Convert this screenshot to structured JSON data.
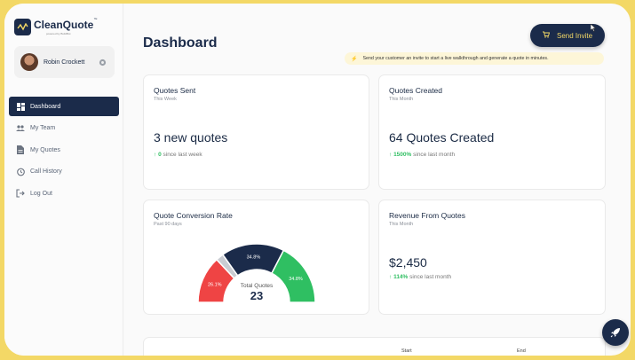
{
  "brand": {
    "name": "CleanQuote",
    "tagline": "powered by BuildBot",
    "tm": "™"
  },
  "user": {
    "name": "Robin Crockett"
  },
  "nav": [
    {
      "label": "Dashboard",
      "icon": "dashboard-icon",
      "active": true
    },
    {
      "label": "My Team",
      "icon": "team-icon"
    },
    {
      "label": "My Quotes",
      "icon": "document-icon"
    },
    {
      "label": "Call History",
      "icon": "history-icon"
    },
    {
      "label": "Log Out",
      "icon": "logout-icon"
    }
  ],
  "header": {
    "title": "Dashboard",
    "send_invite": "Send Invite",
    "hint": "Send your customer an invite to start a live walkthrough and generate a quote in minutes."
  },
  "cards": {
    "quotes_sent": {
      "title": "Quotes Sent",
      "period": "This Week",
      "value": "3 new quotes",
      "trend_value": "0",
      "trend_text": "since last week"
    },
    "quotes_created": {
      "title": "Quotes Created",
      "period": "This Month",
      "value": "64 Quotes Created",
      "trend_value": "1500%",
      "trend_text": "since last month"
    },
    "conversion": {
      "title": "Quote Conversion Rate",
      "period": "Past 90 days",
      "center_label": "Total Quotes",
      "center_value": "23"
    },
    "revenue": {
      "title": "Revenue From Quotes",
      "period": "This Month",
      "value": "$2,450",
      "trend_value": "114%",
      "trend_text": "since last month"
    }
  },
  "chart_data": {
    "type": "pie",
    "title": "Quote Conversion Rate",
    "center_label": "Total Quotes",
    "center_value": 23,
    "slices": [
      {
        "label": "26.1%",
        "value": 26.1,
        "color": "#ef4444"
      },
      {
        "label": "",
        "value": 4.3,
        "color": "#c9ccd2"
      },
      {
        "label": "34.8%",
        "value": 34.8,
        "color": "#1b2b4a"
      },
      {
        "label": "34.8%",
        "value": 34.8,
        "color": "#2fbf62"
      }
    ]
  },
  "table": {
    "col_start": "Start",
    "col_end": "End"
  },
  "colors": {
    "navy": "#1b2b4a",
    "accent": "#f3d866",
    "green": "#2fbf62",
    "red": "#ef4444"
  }
}
